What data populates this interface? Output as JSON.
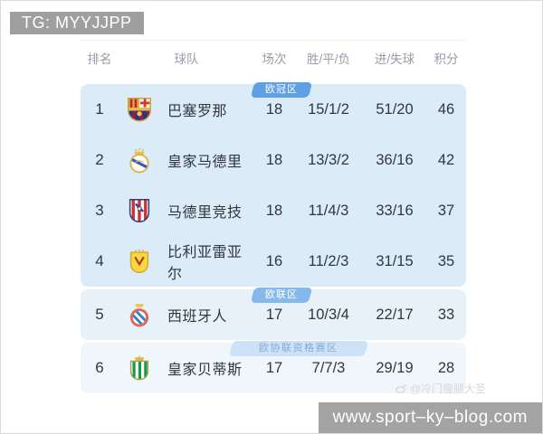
{
  "overlays": {
    "tg_badge": "TG: MYYJJPP",
    "watermark": "@冷门瘦腿大圣",
    "url_bar": "www.sport–ky–blog.com"
  },
  "table": {
    "headers": [
      "排名",
      "球队",
      "场次",
      "胜/平/负",
      "进/失球",
      "积分"
    ],
    "rows": [
      {
        "rank": "1",
        "team": "巴塞罗那",
        "crest": "barcelona",
        "played": "18",
        "wdl": "15/1/2",
        "goals": "51/20",
        "points": "46",
        "zone_badge": "欧冠区",
        "group": "cl"
      },
      {
        "rank": "2",
        "team": "皇家马德里",
        "crest": "real-madrid",
        "played": "18",
        "wdl": "13/3/2",
        "goals": "36/16",
        "points": "42",
        "group": "cl"
      },
      {
        "rank": "3",
        "team": "马德里竞技",
        "crest": "atletico-madrid",
        "played": "18",
        "wdl": "11/4/3",
        "goals": "33/16",
        "points": "37",
        "group": "cl"
      },
      {
        "rank": "4",
        "team": "比利亚雷亚尔",
        "crest": "villarreal",
        "played": "16",
        "wdl": "11/2/3",
        "goals": "31/15",
        "points": "35",
        "group": "cl"
      },
      {
        "rank": "5",
        "team": "西班牙人",
        "crest": "espanyol",
        "played": "17",
        "wdl": "10/3/4",
        "goals": "22/17",
        "points": "33",
        "zone_badge": "欧联区",
        "group": "el"
      },
      {
        "rank": "6",
        "team": "皇家贝蒂斯",
        "crest": "real-betis",
        "played": "17",
        "wdl": "7/7/3",
        "goals": "29/19",
        "points": "28",
        "zone_badge": "欧协联资格赛区",
        "group": "ecl"
      }
    ],
    "row_bg": {
      "cl": "#dcebf8",
      "el": "#e6f1fa",
      "ecl": "#f0f7fc"
    },
    "zone_colors": {
      "cl": {
        "bg": "#5f9fe4",
        "text": "#ffffff"
      },
      "el": {
        "bg": "#86b9eb",
        "text": "#ffffff"
      },
      "ecl": {
        "bg": "#cde2f7",
        "text": "#82abd8"
      }
    }
  }
}
